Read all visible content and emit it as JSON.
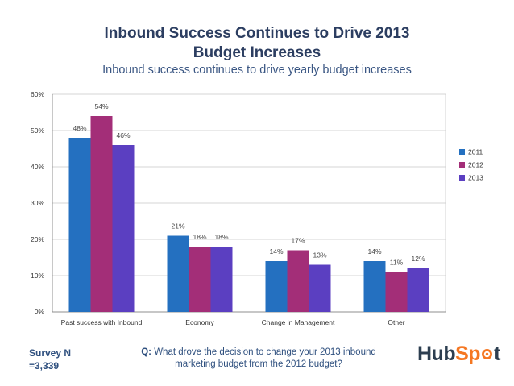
{
  "header": {
    "title_line1": "Inbound Success Continues to Drive 2013",
    "title_line2": "Budget Increases",
    "subtitle": "Inbound success continues to drive yearly budget increases"
  },
  "footer": {
    "survey_label": "Survey N",
    "survey_value": "=3,339",
    "question_prefix": "Q:",
    "question_text": "What drove the decision to change your 2013 inbound marketing budget from the 2012 budget?",
    "logo_text_a": "Hub",
    "logo_text_b": "Sp",
    "logo_text_c": "t"
  },
  "colors": {
    "2011": "#2470c0",
    "2012": "#a32e78",
    "2013": "#5b3fc1"
  },
  "chart_data": {
    "type": "bar",
    "title": "Inbound Success Continues to Drive 2013 Budget Increases",
    "subtitle": "Inbound success continues to drive yearly budget increases",
    "categories": [
      "Past success with Inbound",
      "Economy",
      "Change in Management",
      "Other"
    ],
    "series": [
      {
        "name": "2011",
        "values": [
          48,
          21,
          14,
          14
        ],
        "labels": [
          "48%",
          "21%",
          "14%",
          "14%"
        ]
      },
      {
        "name": "2012",
        "values": [
          54,
          18,
          17,
          11
        ],
        "labels": [
          "54%",
          "18%",
          "17%",
          "11%"
        ]
      },
      {
        "name": "2013",
        "values": [
          46,
          18,
          13,
          12
        ],
        "labels": [
          "46%",
          "18%",
          "13%",
          "12%"
        ]
      }
    ],
    "y_ticks": [
      0,
      10,
      20,
      30,
      40,
      50,
      60
    ],
    "y_tick_labels": [
      "0%",
      "10%",
      "20%",
      "30%",
      "40%",
      "50%",
      "60%"
    ],
    "ylim": [
      0,
      60
    ],
    "grid": true,
    "legend": "right",
    "xlabel": "",
    "ylabel": ""
  }
}
